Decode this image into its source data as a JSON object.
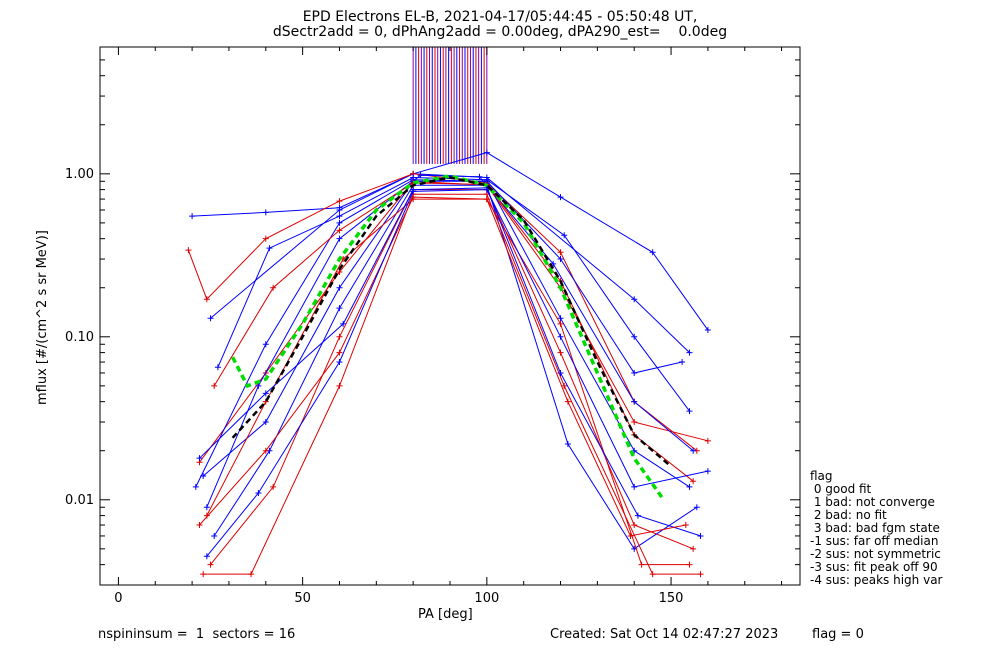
{
  "title_line1": "EPD Electrons EL-B, 2021-04-17/05:44:45 - 05:50:48 UT,",
  "title_line2": "dSectr2add = 0, dPhAng2add = 0.00deg, dPA290_est=    0.0deg",
  "footer": {
    "left": "nspininsum =  1  sectors = 16",
    "created": "Created: Sat Oct 14 02:47:27 2023",
    "flag": "flag = 0"
  },
  "legend": {
    "title": "flag",
    "items": [
      " 0 good fit",
      " 1 bad: not converge",
      " 2 bad: no fit",
      " 3 bad: bad fgm state",
      "-1 sus: far off median",
      "-2 sus: not symmetric",
      "-3 sus: fit peak off 90",
      "-4 sus: peaks high var"
    ]
  },
  "colors": {
    "blue": "#0000ff",
    "red": "#dd0000",
    "purple": "#8800aa",
    "green": "#00dd00",
    "black": "#000000"
  },
  "chart_data": {
    "type": "line",
    "title": "EPD Electrons EL-B, 2021-04-17/05:44:45 - 05:50:48 UT,",
    "subtitle": "dSectr2add = 0, dPhAng2add = 0.00deg, dPA290_est=    0.0deg",
    "xlabel": "PA [deg]",
    "ylabel": "mflux [#/(cm^2 s sr MeV)]",
    "xlim": [
      -5,
      185
    ],
    "ylim": [
      0.003,
      6
    ],
    "yscale": "log",
    "xticks": [
      0,
      50,
      100,
      150
    ],
    "yticks": [
      0.01,
      0.1,
      1.0
    ],
    "ytick_labels": [
      "0.01",
      "0.10",
      "1.00"
    ],
    "series": [
      {
        "color": "blue",
        "x": [
          20,
          40,
          60,
          80,
          100,
          120,
          145,
          160
        ],
        "y": [
          0.55,
          0.58,
          0.62,
          1.0,
          1.35,
          0.72,
          0.33,
          0.11
        ]
      },
      {
        "color": "blue",
        "x": [
          25,
          60,
          80,
          100,
          140,
          155
        ],
        "y": [
          0.13,
          0.6,
          1.0,
          0.95,
          0.17,
          0.08
        ]
      },
      {
        "color": "red",
        "x": [
          19,
          24,
          40,
          60,
          80,
          100,
          120,
          140,
          157
        ],
        "y": [
          0.34,
          0.17,
          0.4,
          0.68,
          1.0,
          0.88,
          0.33,
          0.04,
          0.02
        ]
      },
      {
        "color": "blue",
        "x": [
          27,
          41,
          60,
          80,
          100,
          121,
          140,
          155
        ],
        "y": [
          0.065,
          0.35,
          0.55,
          0.95,
          0.92,
          0.42,
          0.1,
          0.035
        ]
      },
      {
        "color": "red",
        "x": [
          22,
          40,
          60,
          80,
          100,
          120,
          140,
          160
        ],
        "y": [
          0.017,
          0.06,
          0.25,
          0.9,
          0.85,
          0.2,
          0.03,
          0.023
        ]
      },
      {
        "color": "blue",
        "x": [
          23,
          40,
          60,
          80,
          100,
          120,
          140,
          155
        ],
        "y": [
          0.014,
          0.03,
          0.2,
          0.9,
          0.9,
          0.13,
          0.02,
          0.012
        ]
      },
      {
        "color": "red",
        "x": [
          25,
          42,
          60,
          80,
          100,
          120,
          140,
          156
        ],
        "y": [
          0.004,
          0.012,
          0.1,
          0.8,
          0.8,
          0.08,
          0.007,
          0.005
        ]
      },
      {
        "color": "blue",
        "x": [
          26,
          41,
          60,
          80,
          100,
          122,
          140,
          157
        ],
        "y": [
          0.006,
          0.02,
          0.15,
          0.85,
          0.85,
          0.022,
          0.005,
          0.009
        ]
      },
      {
        "color": "red",
        "x": [
          24,
          40,
          61,
          80,
          100,
          120,
          142,
          155
        ],
        "y": [
          0.008,
          0.04,
          0.3,
          0.7,
          0.7,
          0.12,
          0.004,
          0.004
        ]
      },
      {
        "color": "blue",
        "x": [
          24,
          38,
          60,
          82,
          98,
          118,
          140,
          156
        ],
        "y": [
          0.009,
          0.05,
          0.4,
          0.98,
          0.96,
          0.28,
          0.04,
          0.02
        ]
      },
      {
        "color": "red",
        "x": [
          23,
          36,
          60,
          80,
          100,
          121,
          145,
          158
        ],
        "y": [
          0.0035,
          0.0035,
          0.05,
          0.75,
          0.75,
          0.05,
          0.0035,
          0.0035
        ]
      },
      {
        "color": "blue",
        "x": [
          21,
          40,
          60,
          80,
          100,
          120,
          140,
          153
        ],
        "y": [
          0.012,
          0.09,
          0.5,
          0.92,
          0.9,
          0.3,
          0.06,
          0.07
        ]
      },
      {
        "color": "red",
        "x": [
          26,
          42,
          60,
          80,
          100,
          120,
          140,
          156
        ],
        "y": [
          0.05,
          0.2,
          0.45,
          0.88,
          0.86,
          0.22,
          0.025,
          0.013
        ]
      },
      {
        "color": "blue",
        "x": [
          22,
          40,
          61,
          80,
          100,
          120,
          141,
          158
        ],
        "y": [
          0.018,
          0.045,
          0.12,
          0.8,
          0.82,
          0.06,
          0.008,
          0.006
        ]
      },
      {
        "color": "red",
        "x": [
          22,
          40,
          60,
          80,
          100,
          122,
          139,
          154
        ],
        "y": [
          0.007,
          0.02,
          0.08,
          0.72,
          0.7,
          0.04,
          0.006,
          0.007
        ]
      },
      {
        "color": "blue",
        "x": [
          24,
          38,
          60,
          80,
          100,
          120,
          140,
          160
        ],
        "y": [
          0.0045,
          0.011,
          0.07,
          0.78,
          0.8,
          0.1,
          0.012,
          0.015
        ]
      }
    ],
    "fit_curves": [
      {
        "name": "",
        "color": "green",
        "style": "dashed",
        "x": [
          31,
          35,
          40,
          50,
          60,
          70,
          80,
          90,
          100,
          110,
          120,
          130,
          140,
          148
        ],
        "y": [
          0.075,
          0.05,
          0.055,
          0.12,
          0.3,
          0.6,
          0.88,
          0.97,
          0.85,
          0.5,
          0.2,
          0.06,
          0.018,
          0.01
        ]
      },
      {
        "name": "",
        "color": "black",
        "style": "dashed",
        "x": [
          31,
          40,
          50,
          60,
          70,
          80,
          90,
          100,
          110,
          120,
          130,
          140,
          150
        ],
        "y": [
          0.024,
          0.04,
          0.1,
          0.26,
          0.55,
          0.85,
          0.95,
          0.85,
          0.52,
          0.22,
          0.07,
          0.025,
          0.016
        ]
      }
    ],
    "vertical_bars": {
      "x_start": 80,
      "x_end": 100,
      "count": 28
    }
  }
}
